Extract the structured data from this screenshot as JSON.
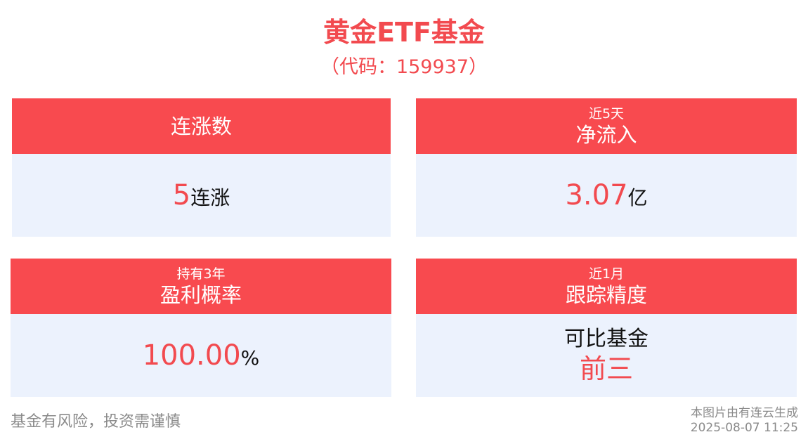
{
  "title": "黄金ETF基金",
  "subtitle": "（代码：159937）",
  "cards": {
    "streak": {
      "head": "连涨数",
      "value_num": "5",
      "value_unit": "连涨"
    },
    "inflow": {
      "head_small": "近5天",
      "head_big": "净流入",
      "value_num": "3.07",
      "value_unit": "亿"
    },
    "profit": {
      "head_small": "持有3年",
      "head_big": "盈利概率",
      "value_num": "100.00",
      "value_unit": "%"
    },
    "tracking": {
      "head_small": "近1月",
      "head_big": "跟踪精度",
      "value_line1": "可比基金",
      "value_line2": "前三"
    }
  },
  "footer": {
    "risk_note": "基金有风险，投资需谨慎",
    "generated_by": "本图片由有连云生成",
    "timestamp": "2025-08-07 11:25"
  },
  "colors": {
    "accent_red": "#f84a4f",
    "card_body_bg": "#ecf2fd",
    "footer_gray": "#8a8a8a"
  }
}
